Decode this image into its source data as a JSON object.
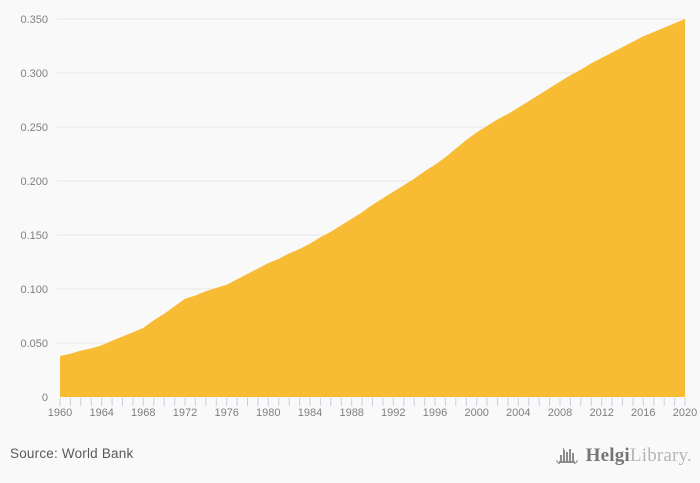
{
  "chart_data": {
    "type": "area",
    "title": "",
    "xlabel": "",
    "ylabel": "",
    "x": [
      1960,
      1961,
      1962,
      1963,
      1964,
      1965,
      1966,
      1967,
      1968,
      1969,
      1970,
      1971,
      1972,
      1973,
      1974,
      1975,
      1976,
      1977,
      1978,
      1979,
      1980,
      1981,
      1982,
      1983,
      1984,
      1985,
      1986,
      1987,
      1988,
      1989,
      1990,
      1991,
      1992,
      1993,
      1994,
      1995,
      1996,
      1997,
      1998,
      1999,
      2000,
      2001,
      2002,
      2003,
      2004,
      2005,
      2006,
      2007,
      2008,
      2009,
      2010,
      2011,
      2012,
      2013,
      2014,
      2015,
      2016,
      2017,
      2018,
      2019,
      2020
    ],
    "values": [
      0.038,
      0.04,
      0.043,
      0.045,
      0.048,
      0.052,
      0.056,
      0.06,
      0.064,
      0.071,
      0.077,
      0.084,
      0.091,
      0.094,
      0.098,
      0.101,
      0.104,
      0.109,
      0.114,
      0.119,
      0.124,
      0.128,
      0.133,
      0.137,
      0.142,
      0.148,
      0.153,
      0.159,
      0.165,
      0.171,
      0.178,
      0.184,
      0.19,
      0.196,
      0.202,
      0.209,
      0.215,
      0.222,
      0.23,
      0.238,
      0.245,
      0.251,
      0.257,
      0.262,
      0.268,
      0.274,
      0.28,
      0.286,
      0.292,
      0.298,
      0.303,
      0.309,
      0.314,
      0.319,
      0.324,
      0.329,
      0.334,
      0.338,
      0.342,
      0.346,
      0.35
    ],
    "xlim": [
      1960,
      2020
    ],
    "ylim": [
      0,
      0.35
    ],
    "x_tick_label_step_years": 4,
    "x_tick_labels": [
      "1960",
      "1964",
      "1968",
      "1972",
      "1976",
      "1980",
      "1984",
      "1988",
      "1992",
      "1996",
      "2000",
      "2004",
      "2008",
      "2012",
      "2016",
      "2020"
    ],
    "y_ticks": [
      0,
      0.05,
      0.1,
      0.15,
      0.2,
      0.25,
      0.3,
      0.35
    ],
    "y_tick_labels": [
      "0",
      "0.050",
      "0.100",
      "0.150",
      "0.200",
      "0.250",
      "0.300",
      "0.350"
    ],
    "grid": "horizontal-only",
    "legend": "none",
    "colors": {
      "area_fill": "#f8bc34",
      "background": "#f9f9f9",
      "gridline": "#e8e8e8",
      "tick_mark": "#c9cfe2",
      "axis_label_text": "#7f7f7f"
    }
  },
  "footer": {
    "source": "Source: World Bank",
    "brand_bold": "Helgi",
    "brand_light": "Library."
  }
}
